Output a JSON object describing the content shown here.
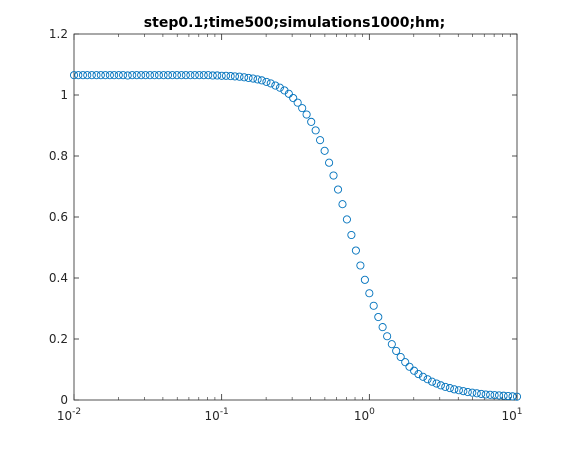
{
  "chart_data": {
    "type": "scatter",
    "title": "step0.1;time500;simulations1000;hm;",
    "xlabel": "",
    "ylabel": "",
    "xscale": "log",
    "xlim": [
      0.01,
      10
    ],
    "ylim": [
      0,
      1.2
    ],
    "grid": false,
    "legend": "none",
    "marker": "open-circle",
    "color": "#0072BD",
    "x_ticks": [
      {
        "base": "10",
        "exp": "-2"
      },
      {
        "base": "10",
        "exp": "-1"
      },
      {
        "base": "10",
        "exp": "0"
      },
      {
        "base": "10",
        "exp": "1"
      }
    ],
    "y_ticks": [
      "0",
      "0.2",
      "0.4",
      "0.6",
      "0.8",
      "1",
      "1.2"
    ],
    "series": [
      {
        "x": [
          0.01,
          0.0107,
          0.0115,
          0.0123,
          0.0132,
          0.0142,
          0.0152,
          0.0163,
          0.0175,
          0.0187,
          0.0201,
          0.0215,
          0.0231,
          0.0248,
          0.0266,
          0.0285,
          0.0305,
          0.0327,
          0.0351,
          0.0376,
          0.0404,
          0.0433,
          0.0464,
          0.0498,
          0.0534,
          0.0572,
          0.0614,
          0.0658,
          0.0705,
          0.0756,
          0.0811,
          0.087,
          0.0933,
          0.1,
          0.107,
          0.115,
          0.123,
          0.132,
          0.142,
          0.152,
          0.163,
          0.175,
          0.187,
          0.201,
          0.215,
          0.231,
          0.248,
          0.266,
          0.285,
          0.305,
          0.327,
          0.351,
          0.376,
          0.404,
          0.433,
          0.464,
          0.498,
          0.534,
          0.572,
          0.614,
          0.658,
          0.705,
          0.756,
          0.811,
          0.87,
          0.933,
          1.0,
          1.07,
          1.15,
          1.23,
          1.32,
          1.42,
          1.52,
          1.63,
          1.75,
          1.87,
          2.01,
          2.15,
          2.31,
          2.48,
          2.66,
          2.85,
          3.05,
          3.27,
          3.51,
          3.76,
          4.04,
          4.33,
          4.64,
          4.98,
          5.34,
          5.72,
          6.14,
          6.58,
          7.05,
          7.56,
          8.11,
          8.7,
          9.33,
          10.0
        ],
        "y": [
          1.065,
          1.065,
          1.065,
          1.065,
          1.065,
          1.065,
          1.065,
          1.065,
          1.065,
          1.065,
          1.065,
          1.065,
          1.064,
          1.065,
          1.065,
          1.065,
          1.065,
          1.065,
          1.065,
          1.065,
          1.065,
          1.065,
          1.065,
          1.065,
          1.065,
          1.065,
          1.065,
          1.065,
          1.065,
          1.065,
          1.065,
          1.064,
          1.064,
          1.063,
          1.063,
          1.062,
          1.061,
          1.06,
          1.058,
          1.056,
          1.054,
          1.051,
          1.048,
          1.043,
          1.038,
          1.031,
          1.024,
          1.015,
          1.004,
          0.99,
          0.975,
          0.957,
          0.936,
          0.912,
          0.884,
          0.852,
          0.817,
          0.778,
          0.736,
          0.69,
          0.642,
          0.592,
          0.541,
          0.49,
          0.441,
          0.394,
          0.35,
          0.309,
          0.272,
          0.239,
          0.209,
          0.183,
          0.161,
          0.141,
          0.124,
          0.109,
          0.096,
          0.085,
          0.076,
          0.068,
          0.06,
          0.054,
          0.048,
          0.043,
          0.039,
          0.035,
          0.032,
          0.029,
          0.026,
          0.024,
          0.022,
          0.02,
          0.018,
          0.017,
          0.016,
          0.015,
          0.014,
          0.013,
          0.012,
          0.011
        ]
      }
    ]
  }
}
